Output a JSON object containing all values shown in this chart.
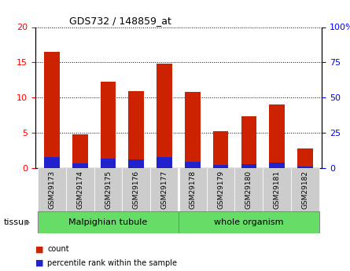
{
  "title": "GDS732 / 148859_at",
  "categories": [
    "GSM29173",
    "GSM29174",
    "GSM29175",
    "GSM29176",
    "GSM29177",
    "GSM29178",
    "GSM29179",
    "GSM29180",
    "GSM29181",
    "GSM29182"
  ],
  "count_values": [
    16.5,
    4.8,
    12.3,
    10.9,
    14.8,
    10.8,
    5.2,
    7.4,
    9.0,
    2.8
  ],
  "percentile_values": [
    8.0,
    3.3,
    6.9,
    6.1,
    7.9,
    4.5,
    2.4,
    2.9,
    3.8,
    1.1
  ],
  "ylim_left": [
    0,
    20
  ],
  "ylim_right": [
    0,
    100
  ],
  "yticks_left": [
    0,
    5,
    10,
    15,
    20
  ],
  "yticks_right": [
    0,
    25,
    50,
    75,
    100
  ],
  "bar_color": "#cc2200",
  "percentile_color": "#2222cc",
  "bg_color": "#ffffff",
  "plot_bg": "#ffffff",
  "tissue_group_names": [
    "Malpighian tubule",
    "whole organism"
  ],
  "tissue_group_ranges": [
    [
      0,
      4
    ],
    [
      5,
      9
    ]
  ],
  "tissue_bg": "#66dd66",
  "xlabel_bg": "#cccccc",
  "legend_count": "count",
  "legend_pct": "percentile rank within the sample",
  "tissue_label": "tissue",
  "bar_width": 0.55
}
